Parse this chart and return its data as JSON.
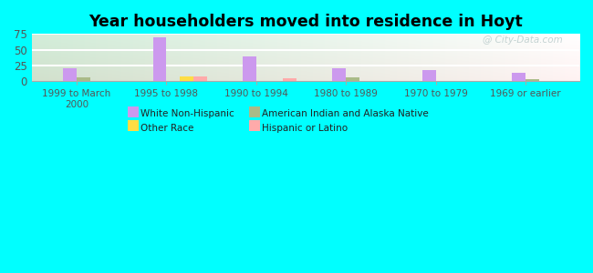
{
  "title": "Year householders moved into residence in Hoyt",
  "background_color": "#00FFFF",
  "categories": [
    "1999 to March\n2000",
    "1995 to 1998",
    "1990 to 1994",
    "1980 to 1989",
    "1970 to 1979",
    "1969 or earlier"
  ],
  "series": [
    {
      "name": "White Non-Hispanic",
      "values": [
        20,
        70,
        39,
        21,
        18,
        13
      ],
      "color": "#cc99ee"
    },
    {
      "name": "American Indian and Alaska Native",
      "values": [
        6,
        0,
        0,
        6,
        0,
        3
      ],
      "color": "#aabb88"
    },
    {
      "name": "Other Race",
      "values": [
        0,
        8,
        0,
        0,
        0,
        0
      ],
      "color": "#ffdd44"
    },
    {
      "name": "Hispanic or Latino",
      "values": [
        0,
        7,
        4,
        0,
        0,
        0
      ],
      "color": "#ffaaaa"
    }
  ],
  "ylim": [
    0,
    75
  ],
  "yticks": [
    0,
    25,
    50,
    75
  ],
  "bar_width": 0.15,
  "watermark": "@ City-Data.com",
  "legend_order": [
    0,
    2,
    1,
    3
  ],
  "legend_ncol": 2
}
